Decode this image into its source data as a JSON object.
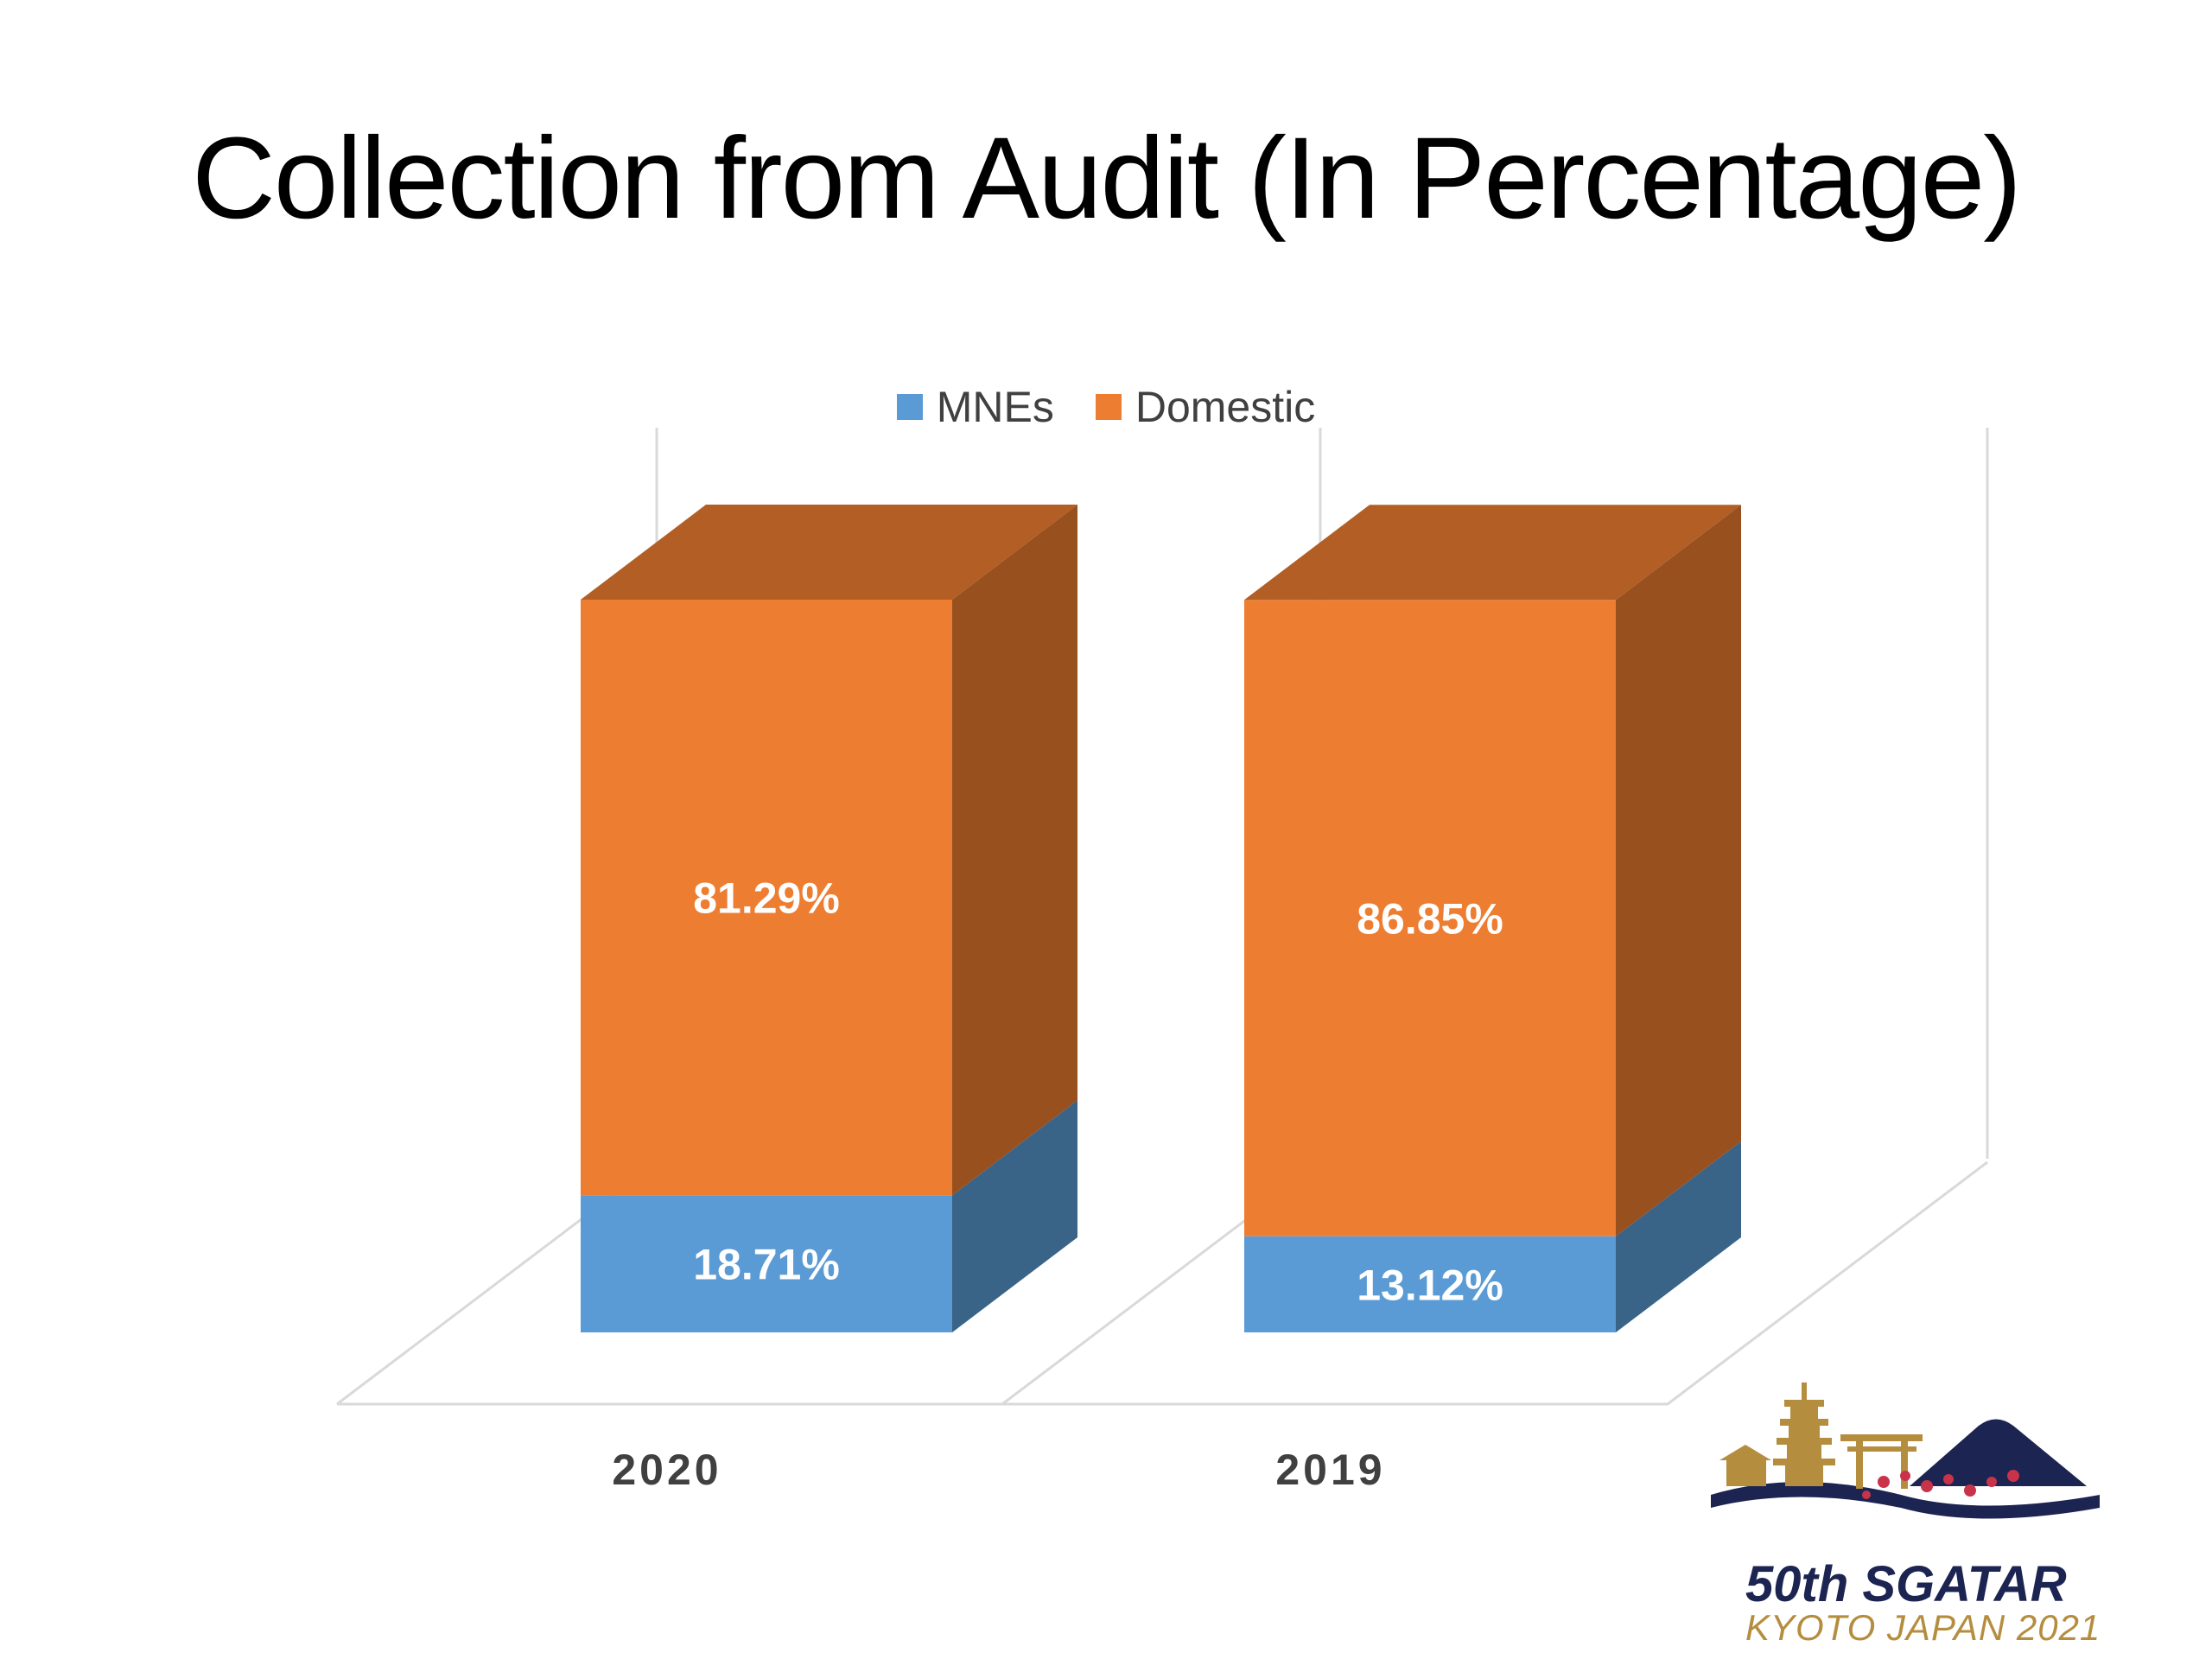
{
  "slide": {
    "title": "Collection from Audit (In Percentage)"
  },
  "chart_data": {
    "type": "bar",
    "stacked": true,
    "three_d": true,
    "title": "Collection from Audit (In Percentage)",
    "categories": [
      "2020",
      "2019"
    ],
    "series": [
      {
        "name": "MNEs",
        "values": [
          18.71,
          13.12
        ],
        "labels": [
          "18.71%",
          "13.12%"
        ],
        "color": "#5b9bd5"
      },
      {
        "name": "Domestic",
        "values": [
          81.29,
          86.85
        ],
        "labels": [
          "81.29%",
          "86.85%"
        ],
        "color": "#ed7d31"
      }
    ],
    "ylim": [
      0,
      100
    ],
    "unit": "%",
    "legend_position": "top",
    "grid": false
  },
  "logo": {
    "line1": "50th SGATAR",
    "line2": "KYOTO JAPAN 2021",
    "colors": {
      "navy": "#1c2452",
      "gold": "#b58d3f",
      "blossom": "#c8334a"
    }
  }
}
